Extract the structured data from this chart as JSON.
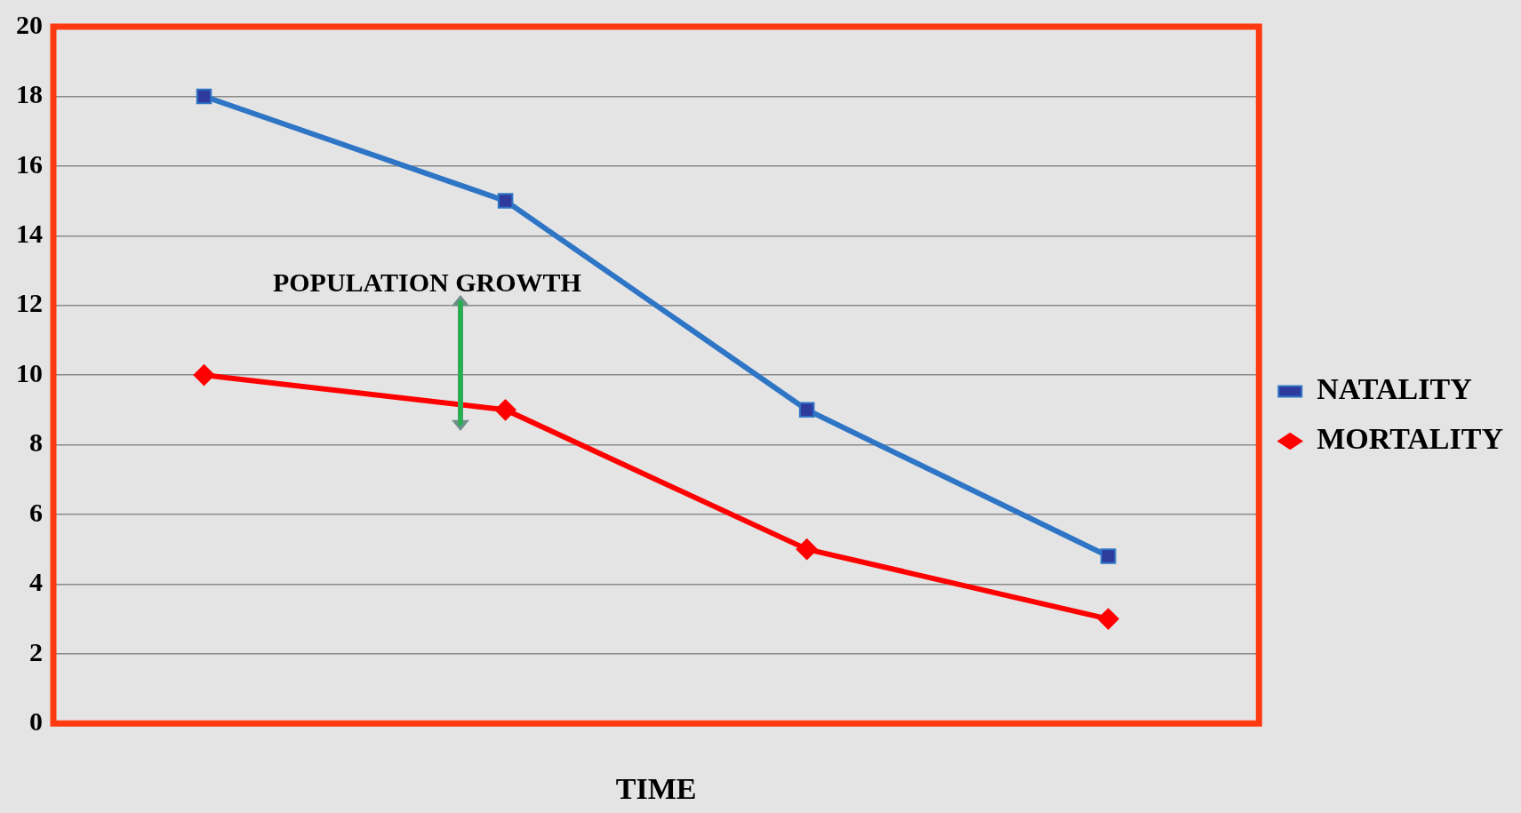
{
  "chart_data": {
    "type": "line",
    "xlabel": "TIME",
    "categories": [
      null,
      null,
      null,
      null
    ],
    "series": [
      {
        "name": "NATALITY",
        "color": "#2e75c6",
        "marker": "square",
        "values": [
          18,
          15,
          9,
          4.8
        ]
      },
      {
        "name": "MORTALITY",
        "color": "#ff0000",
        "marker": "diamond",
        "values": [
          10,
          9,
          5,
          3
        ]
      }
    ],
    "ylim": [
      0,
      20
    ],
    "yticks": [
      0,
      2,
      4,
      6,
      8,
      10,
      12,
      14,
      16,
      18,
      20
    ],
    "grid": "y",
    "legend": "right",
    "annotations": [
      "POPULATION GROWTH"
    ]
  }
}
